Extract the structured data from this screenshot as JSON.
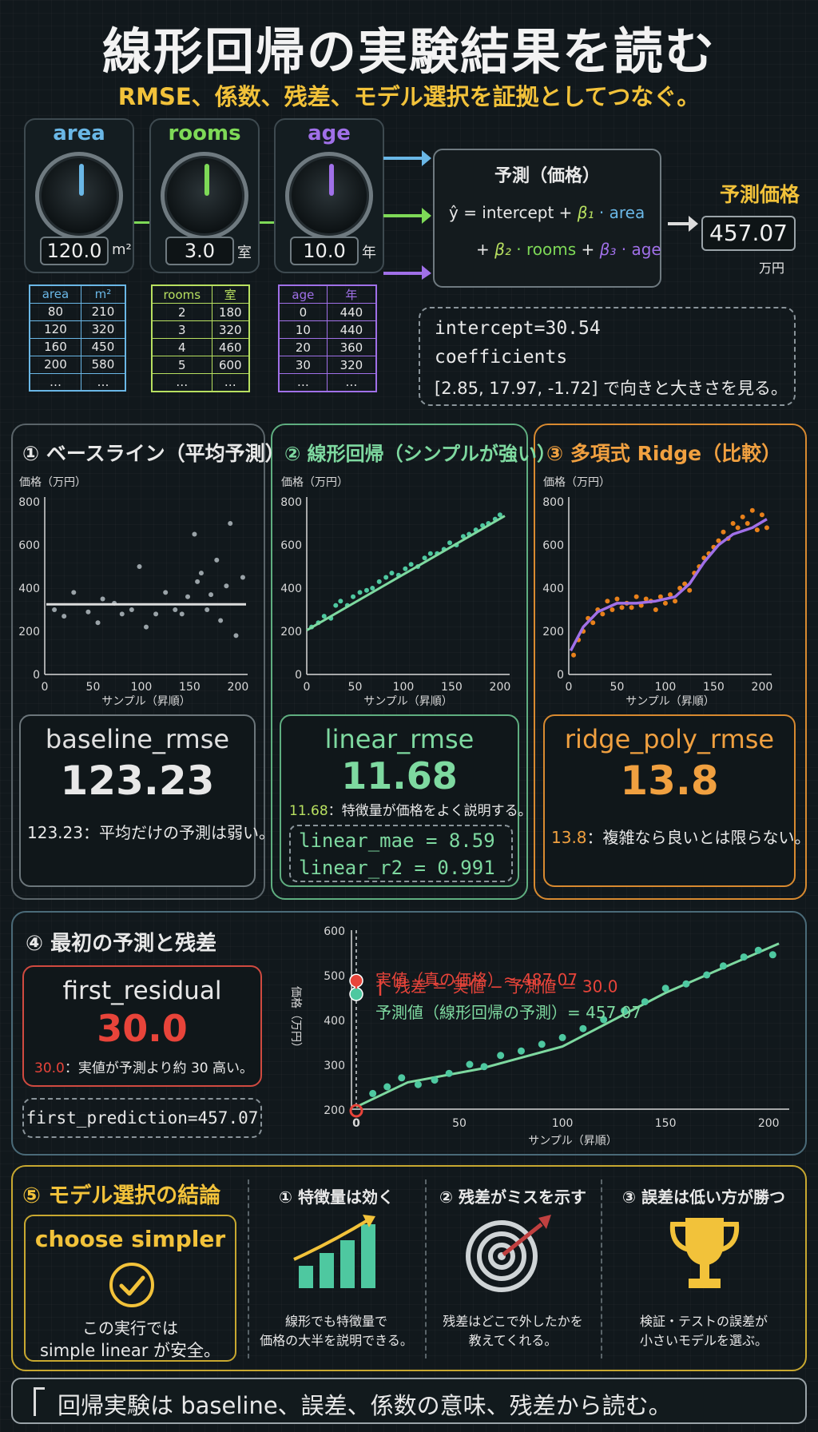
{
  "header": {
    "title": "線形回帰の実験結果を読む",
    "subtitle": "RMSE、係数、残差、モデル選択を証拠としてつなぐ。"
  },
  "features": [
    {
      "name": "area",
      "value": "120.0",
      "unit": "m²",
      "color": "#6ab7e6",
      "table_header": [
        "area",
        "m²"
      ],
      "rows": [
        [
          "80",
          "210"
        ],
        [
          "120",
          "320"
        ],
        [
          "160",
          "450"
        ],
        [
          "200",
          "580"
        ],
        [
          "…",
          "…"
        ]
      ]
    },
    {
      "name": "rooms",
      "value": "3.0",
      "unit": "室",
      "color": "#7ed957",
      "table_header": [
        "rooms",
        "室"
      ],
      "rows": [
        [
          "2",
          "180"
        ],
        [
          "3",
          "320"
        ],
        [
          "4",
          "460"
        ],
        [
          "5",
          "600"
        ],
        [
          "…",
          "…"
        ]
      ]
    },
    {
      "name": "age",
      "value": "10.0",
      "unit": "年",
      "color": "#a070e8",
      "table_header": [
        "age",
        "年"
      ],
      "rows": [
        [
          "0",
          "440"
        ],
        [
          "10",
          "440"
        ],
        [
          "20",
          "360"
        ],
        [
          "30",
          "320"
        ],
        [
          "…",
          "…"
        ]
      ]
    }
  ],
  "formula": {
    "title": "予測（価格）",
    "line1_prefix": "ŷ = intercept + ",
    "beta1": "β₁",
    "area": "· area",
    "plus2": "+ ",
    "beta2": "β₂",
    "rooms": "· rooms",
    "plus3": " + ",
    "beta3": "β₃",
    "age": "· age"
  },
  "prediction": {
    "label": "予測価格",
    "value": "457.07",
    "unit": "万円"
  },
  "coef_box": {
    "line1": "intercept=30.54",
    "line2": "coefficients",
    "line3": "[2.85, 17.97, -1.72] で向きと大きさを見る。"
  },
  "panels": [
    {
      "title": "① ベースライン（平均予測）",
      "metric_name": "baseline_rmse",
      "metric_value": "123.23",
      "note_value": "123.23",
      "note_text": "：平均だけの予測は弱い。"
    },
    {
      "title": "② 線形回帰（シンプルが強い）",
      "metric_name": "linear_rmse",
      "metric_value": "11.68",
      "note_value": "11.68",
      "note_text": "：特徴量が価格をよく説明する。",
      "extra1": "linear_mae = 8.59",
      "extra2": "linear_r2 = 0.991"
    },
    {
      "title": "③ 多項式 Ridge（比較）",
      "metric_name": "ridge_poly_rmse",
      "metric_value": "13.8",
      "note_value": "13.8",
      "note_text": "：複雑なら良いとは限らない。"
    }
  ],
  "small_chart_labels": {
    "ylabel": "価格（万円）",
    "xlabel": "サンプル（昇順）",
    "yticks": [
      "800",
      "600",
      "400",
      "200",
      "0"
    ],
    "xticks": [
      "0",
      "50",
      "100",
      "150",
      "200"
    ]
  },
  "chart_data": [
    {
      "type": "scatter",
      "title": "① ベースライン（平均予測）",
      "ylabel": "価格（万円）",
      "xlabel": "サンプル（昇順）",
      "xlim": [
        0,
        210
      ],
      "ylim": [
        0,
        800
      ],
      "mean_line": 325,
      "x": [
        10,
        20,
        30,
        45,
        55,
        60,
        72,
        80,
        90,
        98,
        105,
        115,
        125,
        135,
        142,
        148,
        155,
        158,
        162,
        168,
        172,
        178,
        182,
        188,
        192,
        198,
        205
      ],
      "y": [
        300,
        270,
        380,
        290,
        240,
        350,
        330,
        280,
        300,
        500,
        220,
        280,
        380,
        300,
        280,
        360,
        650,
        430,
        470,
        300,
        370,
        530,
        250,
        410,
        700,
        180,
        450
      ]
    },
    {
      "type": "scatter",
      "title": "② 線形回帰（シンプルが強い）",
      "ylabel": "価格（万円）",
      "xlabel": "サンプル（昇順）",
      "xlim": [
        0,
        210
      ],
      "ylim": [
        0,
        800
      ],
      "fit_line": [
        [
          0,
          205
        ],
        [
          205,
          735
        ]
      ],
      "x": [
        5,
        12,
        18,
        25,
        30,
        35,
        42,
        48,
        55,
        62,
        68,
        75,
        82,
        88,
        95,
        102,
        108,
        115,
        122,
        128,
        135,
        142,
        148,
        155,
        162,
        168,
        175,
        182,
        188,
        195,
        200
      ],
      "y": [
        220,
        240,
        270,
        260,
        320,
        340,
        320,
        360,
        380,
        390,
        400,
        430,
        450,
        470,
        460,
        490,
        510,
        500,
        540,
        560,
        560,
        580,
        610,
        600,
        640,
        650,
        670,
        690,
        700,
        720,
        740
      ]
    },
    {
      "type": "scatter",
      "title": "③ 多項式 Ridge（比較）",
      "ylabel": "価格（万円）",
      "xlabel": "サンプル（昇順）",
      "xlim": [
        0,
        210
      ],
      "ylim": [
        0,
        800
      ],
      "curve": [
        [
          2,
          110
        ],
        [
          15,
          220
        ],
        [
          30,
          290
        ],
        [
          50,
          330
        ],
        [
          70,
          330
        ],
        [
          90,
          340
        ],
        [
          110,
          360
        ],
        [
          125,
          420
        ],
        [
          140,
          520
        ],
        [
          155,
          600
        ],
        [
          170,
          650
        ],
        [
          190,
          680
        ],
        [
          205,
          720
        ]
      ],
      "x": [
        5,
        10,
        15,
        20,
        25,
        30,
        35,
        40,
        45,
        50,
        55,
        60,
        65,
        70,
        75,
        80,
        85,
        90,
        95,
        100,
        105,
        110,
        115,
        120,
        125,
        130,
        135,
        140,
        145,
        150,
        155,
        160,
        165,
        170,
        175,
        180,
        185,
        190,
        195,
        200,
        205
      ],
      "y": [
        90,
        160,
        200,
        260,
        240,
        300,
        280,
        340,
        300,
        350,
        310,
        330,
        310,
        360,
        320,
        350,
        340,
        300,
        360,
        330,
        370,
        340,
        400,
        420,
        390,
        470,
        500,
        540,
        560,
        590,
        620,
        660,
        630,
        700,
        680,
        730,
        700,
        760,
        670,
        740,
        680
      ]
    },
    {
      "type": "scatter",
      "title": "④ 最初の予測と残差",
      "ylabel": "価格（万円）",
      "xlabel": "サンプル（昇順）",
      "xlim": [
        0,
        210
      ],
      "ylim": [
        200,
        600
      ],
      "fit_line": [
        [
          0,
          205
        ],
        [
          25,
          260
        ],
        [
          60,
          290
        ],
        [
          100,
          340
        ],
        [
          150,
          460
        ],
        [
          205,
          570
        ]
      ],
      "x": [
        8,
        15,
        22,
        30,
        38,
        45,
        55,
        62,
        70,
        80,
        90,
        100,
        110,
        120,
        130,
        140,
        150,
        160,
        170,
        178,
        188,
        195,
        202
      ],
      "y": [
        235,
        250,
        270,
        255,
        265,
        280,
        300,
        295,
        320,
        330,
        345,
        360,
        380,
        400,
        420,
        440,
        470,
        480,
        500,
        520,
        540,
        555,
        545
      ],
      "actual_point": {
        "x": 0,
        "y": 487.07
      },
      "predicted_point": {
        "x": 0,
        "y": 457.07
      },
      "annotations": [
        "実値（真の価格）≈ 487.07",
        "残差 ＝ 実値 − 予測値 ＝ 30.0",
        "予測値（線形回帰の予測）= 457.07"
      ]
    }
  ],
  "residual_section": {
    "title": "④ 最初の予測と残差",
    "metric_name": "first_residual",
    "metric_value": "30.0",
    "note_value": "30.0",
    "note_text": "：実値が予測より約 30 高い。",
    "first_prediction": "first_prediction=457.07",
    "yticks": [
      "600",
      "500",
      "400",
      "300",
      "200"
    ],
    "xticks": [
      "0",
      "50",
      "100",
      "150",
      "200"
    ],
    "ylabel": "価格（万円）",
    "xlabel": "サンプル（昇順）",
    "actual_label": "実値（真の価格）≈ 487.07",
    "residual_label": "残差 ＝ 実値 − 予測値 ＝ 30.0",
    "predicted_label": "予測値（線形回帰の予測）= 457.07"
  },
  "conclusion": {
    "title": "⑤ モデル選択の結論",
    "choice": "choose simpler",
    "choice_note1": "この実行では",
    "choice_note2": "simple linear が安全。",
    "points": [
      {
        "title": "① 特徴量は効く",
        "line1": "線形でも特徴量で",
        "line2": "価格の大半を説明できる。",
        "icon": "bar-growth-icon"
      },
      {
        "title": "② 残差がミスを示す",
        "line1": "残差はどこで外したかを",
        "line2": "教えてくれる。",
        "icon": "target-icon"
      },
      {
        "title": "③ 誤差は低い方が勝つ",
        "line1": "検証・テストの誤差が",
        "line2": "小さいモデルを選ぶ。",
        "icon": "trophy-icon"
      }
    ]
  },
  "footer": "回帰実験は baseline、誤差、係数の意味、残差から読む。",
  "colors": {
    "blue": "#6ab7e6",
    "green": "#7ed9a0",
    "orange": "#f0a040",
    "red": "#e8443a",
    "yellow": "#f2c23a",
    "purple": "#a070e8"
  }
}
